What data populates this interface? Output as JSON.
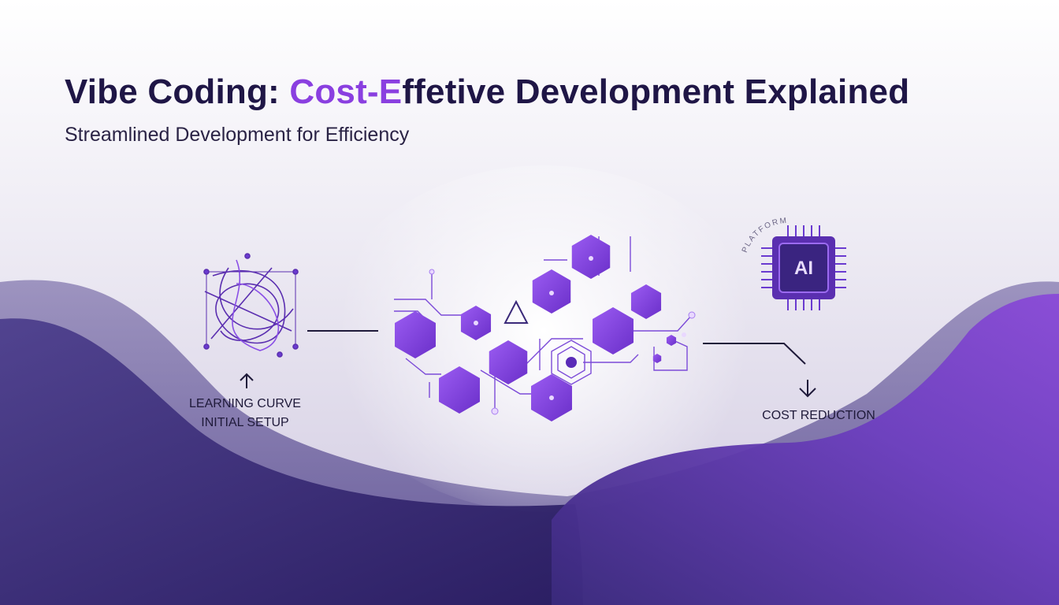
{
  "header": {
    "title_parts": [
      "Vibe Coding: ",
      "Cost-E",
      "ffetive Development Explained"
    ],
    "subtitle": "Streamlined Development for Efficiency"
  },
  "diagram": {
    "left_labels": [
      "LEARNING CURVE",
      "INITIAL SETUP"
    ],
    "right_label": "COST REDUCTION",
    "chip_label": "AI",
    "ring_text": "PLATFORM"
  }
}
